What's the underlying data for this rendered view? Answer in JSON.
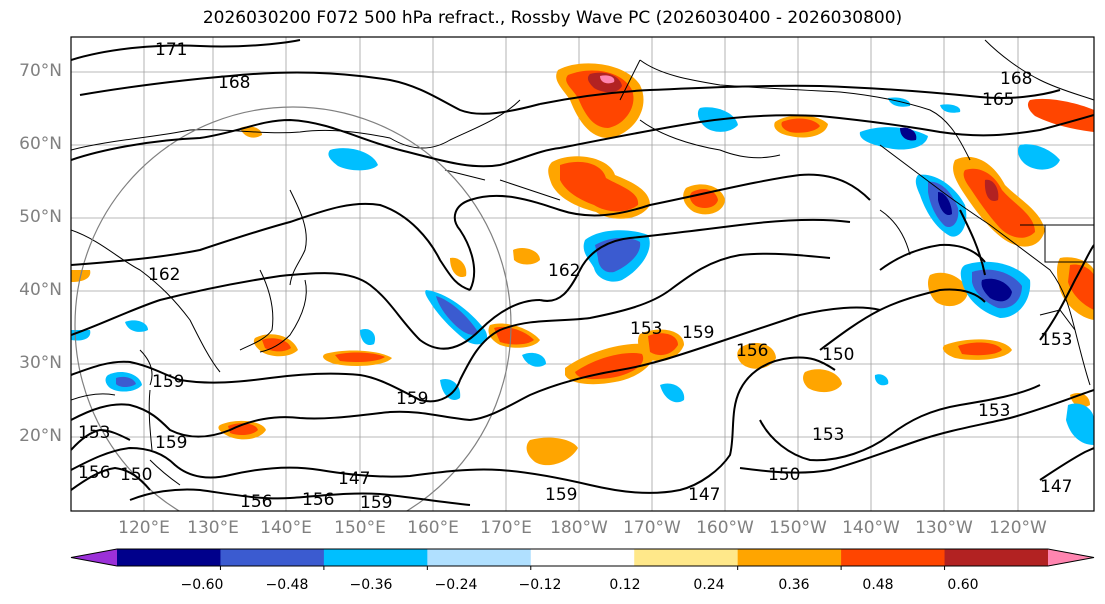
{
  "title": "2026030200 F072 500 hPa refract., Rossby Wave PC (2026030400 - 2026030800)",
  "lat_labels": [
    "70°N",
    "60°N",
    "50°N",
    "40°N",
    "30°N",
    "20°N"
  ],
  "lon_labels": [
    "120°E",
    "130°E",
    "140°E",
    "150°E",
    "160°E",
    "170°E",
    "180°W",
    "170°W",
    "160°W",
    "150°W",
    "140°W",
    "130°W",
    "120°W"
  ],
  "contour_labels": [
    "171",
    "168",
    "165",
    "168",
    "162",
    "162",
    "159",
    "159",
    "159",
    "153",
    "156",
    "156",
    "153",
    "150",
    "153",
    "153",
    "150",
    "147",
    "147",
    "147",
    "156",
    "159",
    "159",
    "153",
    "159",
    "150",
    "156"
  ],
  "colorbar": {
    "colors": [
      "#9b30d8",
      "#00008b",
      "#3b5bd0",
      "#00bfff",
      "#b0e0ff",
      "#ffffff",
      "#ffe88a",
      "#ffa500",
      "#ff4500",
      "#b22222",
      "#ff85b0"
    ],
    "tick_labels": [
      "−0.60",
      "−0.48",
      "−0.36",
      "−0.24",
      "−0.12",
      "0.12",
      "0.24",
      "0.36",
      "0.48",
      "0.60"
    ]
  }
}
